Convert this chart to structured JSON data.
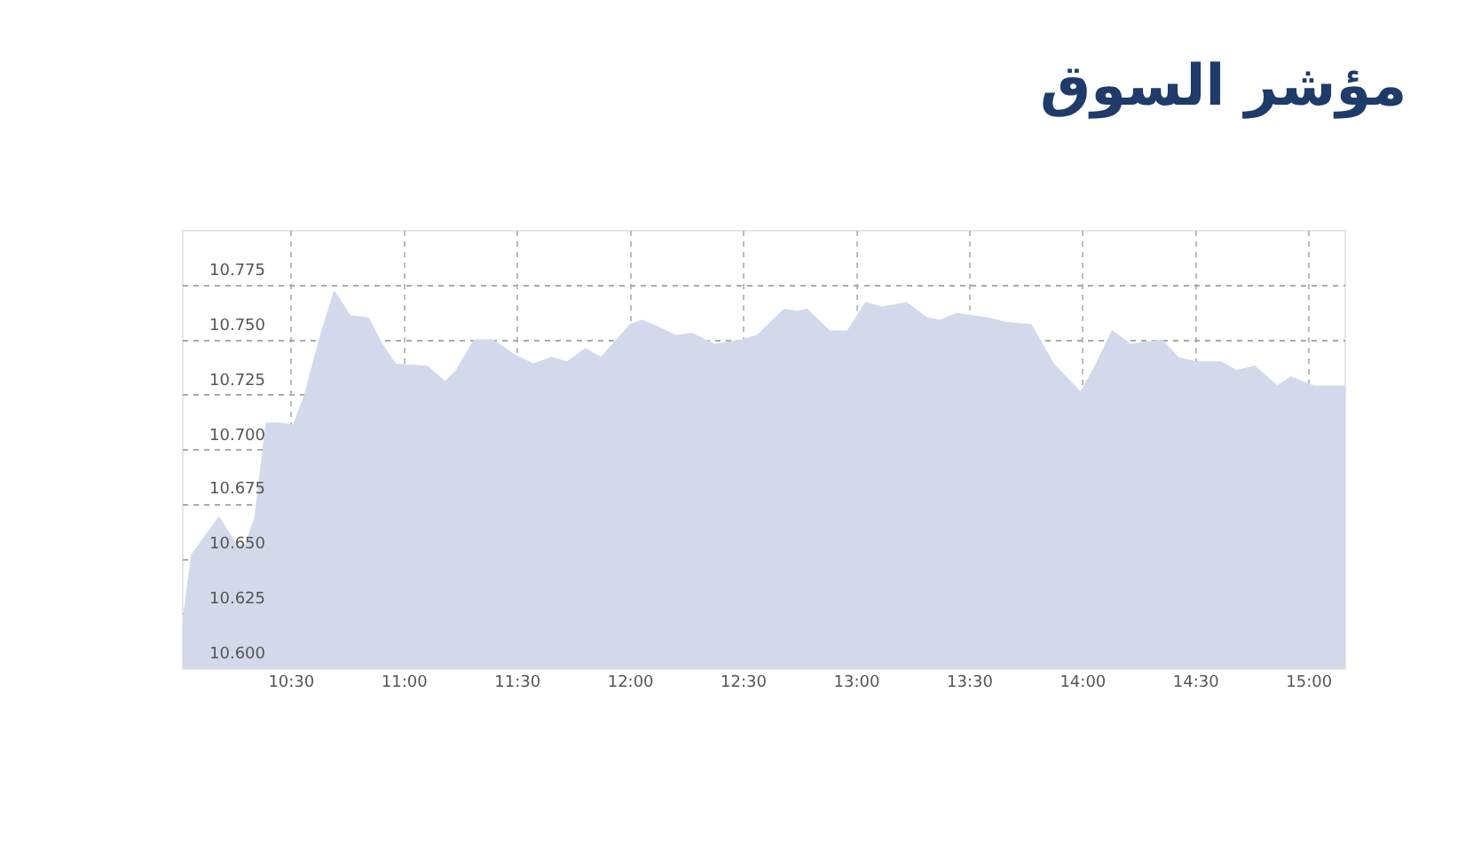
{
  "chart_data": {
    "type": "area",
    "title": "مؤشر السوق",
    "x": [
      10.02,
      10.06,
      10.18,
      10.26,
      10.3,
      10.34,
      10.39,
      10.45,
      10.51,
      10.56,
      10.63,
      10.69,
      10.76,
      10.84,
      10.9,
      10.96,
      11.1,
      11.18,
      11.23,
      11.31,
      11.39,
      11.49,
      11.57,
      11.65,
      11.72,
      11.8,
      11.87,
      12.0,
      12.05,
      12.12,
      12.2,
      12.27,
      12.37,
      12.49,
      12.56,
      12.68,
      12.74,
      12.78,
      12.88,
      12.96,
      13.04,
      13.11,
      13.22,
      13.31,
      13.37,
      13.44,
      13.58,
      13.66,
      13.77,
      13.87,
      13.99,
      14.06,
      14.13,
      14.21,
      14.35,
      14.42,
      14.5,
      14.61,
      14.68,
      14.76,
      14.86,
      14.92,
      15.02,
      15.16
    ],
    "series": [
      {
        "color": "#d3d9ea",
        "values": [
          10.62,
          10.652,
          10.669,
          10.656,
          10.657,
          10.669,
          10.712,
          10.712,
          10.711,
          10.725,
          10.752,
          10.772,
          10.761,
          10.76,
          10.748,
          10.739,
          10.738,
          10.731,
          10.736,
          10.75,
          10.75,
          10.743,
          10.739,
          10.742,
          10.74,
          10.746,
          10.742,
          10.757,
          10.759,
          10.756,
          10.752,
          10.753,
          10.748,
          10.75,
          10.752,
          10.764,
          10.763,
          10.764,
          10.754,
          10.754,
          10.767,
          10.765,
          10.767,
          10.76,
          10.759,
          10.762,
          10.76,
          10.758,
          10.757,
          10.739,
          10.726,
          10.739,
          10.754,
          10.748,
          10.75,
          10.742,
          10.74,
          10.74,
          10.736,
          10.738,
          10.729,
          10.733,
          10.729,
          10.729
        ]
      }
    ],
    "xlim": [
      10.02,
      15.16
    ],
    "ylim": [
      10.6,
      10.8
    ],
    "xticks": [
      {
        "value": 10.5,
        "label": "10:30"
      },
      {
        "value": 11,
        "label": "11:00"
      },
      {
        "value": 11.5,
        "label": "11:30"
      },
      {
        "value": 12,
        "label": "12:00"
      },
      {
        "value": 12.5,
        "label": "12:30"
      },
      {
        "value": 13,
        "label": "13:00"
      },
      {
        "value": 13.5,
        "label": "13:30"
      },
      {
        "value": 14,
        "label": "14:00"
      },
      {
        "value": 14.5,
        "label": "14:30"
      },
      {
        "value": 15,
        "label": "15:00"
      }
    ],
    "yticks": [
      {
        "value": 10.6,
        "label": "10.600"
      },
      10.625,
      {
        "value": 10.65,
        "label": "10.650"
      },
      10.675,
      {
        "value": 10.7,
        "label": "10.700"
      },
      10.725,
      {
        "value": 10.75,
        "label": "10.750"
      },
      10.775
    ],
    "grid": true
  }
}
